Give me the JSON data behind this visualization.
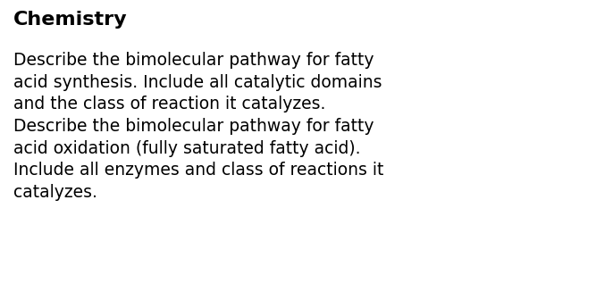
{
  "background_color": "#ffffff",
  "title": "Chemistry",
  "title_fontsize": 16,
  "title_fontweight": "bold",
  "body_text": "Describe the bimolecular pathway for fatty\nacid synthesis. Include all catalytic domains\nand the class of reaction it catalyzes.\nDescribe the bimolecular pathway for fatty\nacid oxidation (fully saturated fatty acid).\nInclude all enzymes and class of reactions it\ncatalyzes.",
  "body_fontsize": 13.5,
  "text_color": "#000000",
  "font_family": "DejaVu Sans",
  "fig_width": 6.86,
  "fig_height": 3.36,
  "dpi": 100
}
